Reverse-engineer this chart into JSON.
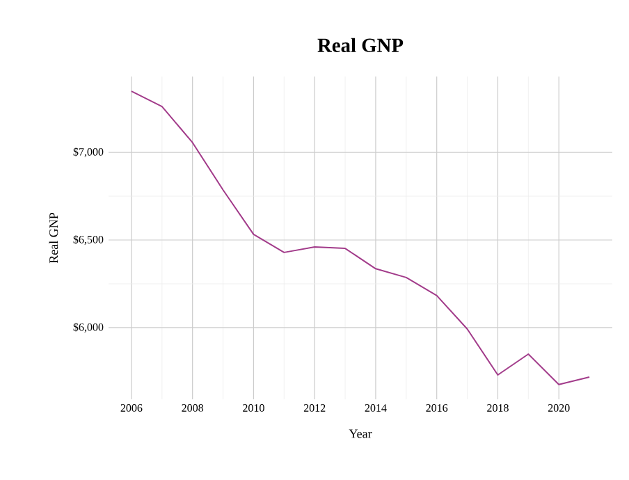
{
  "chart_data": {
    "type": "line",
    "title": "Real GNP",
    "xlabel": "Year",
    "ylabel": "Real GNP",
    "x": [
      2006,
      2007,
      2008,
      2009,
      2010,
      2011,
      2012,
      2013,
      2014,
      2015,
      2016,
      2017,
      2018,
      2019,
      2020,
      2021
    ],
    "series": [
      {
        "color": "#a23b8a",
        "values": [
          7349,
          7262,
          7056,
          6786,
          6532,
          6429,
          6460,
          6452,
          6336,
          6286,
          6183,
          5992,
          5730,
          5849,
          5675,
          5718
        ]
      }
    ],
    "xlim": [
      2005.25,
      2021.75
    ],
    "ylim": [
      5591,
      7433
    ],
    "xticks": [
      2006,
      2008,
      2010,
      2012,
      2014,
      2016,
      2018,
      2020
    ],
    "yticks": [
      {
        "value": 6000,
        "label": "$6,000"
      },
      {
        "value": 6500,
        "label": "$6,500"
      },
      {
        "value": 7000,
        "label": "$7,000"
      }
    ],
    "grid": true,
    "marker": "none",
    "line_style": "solid"
  }
}
